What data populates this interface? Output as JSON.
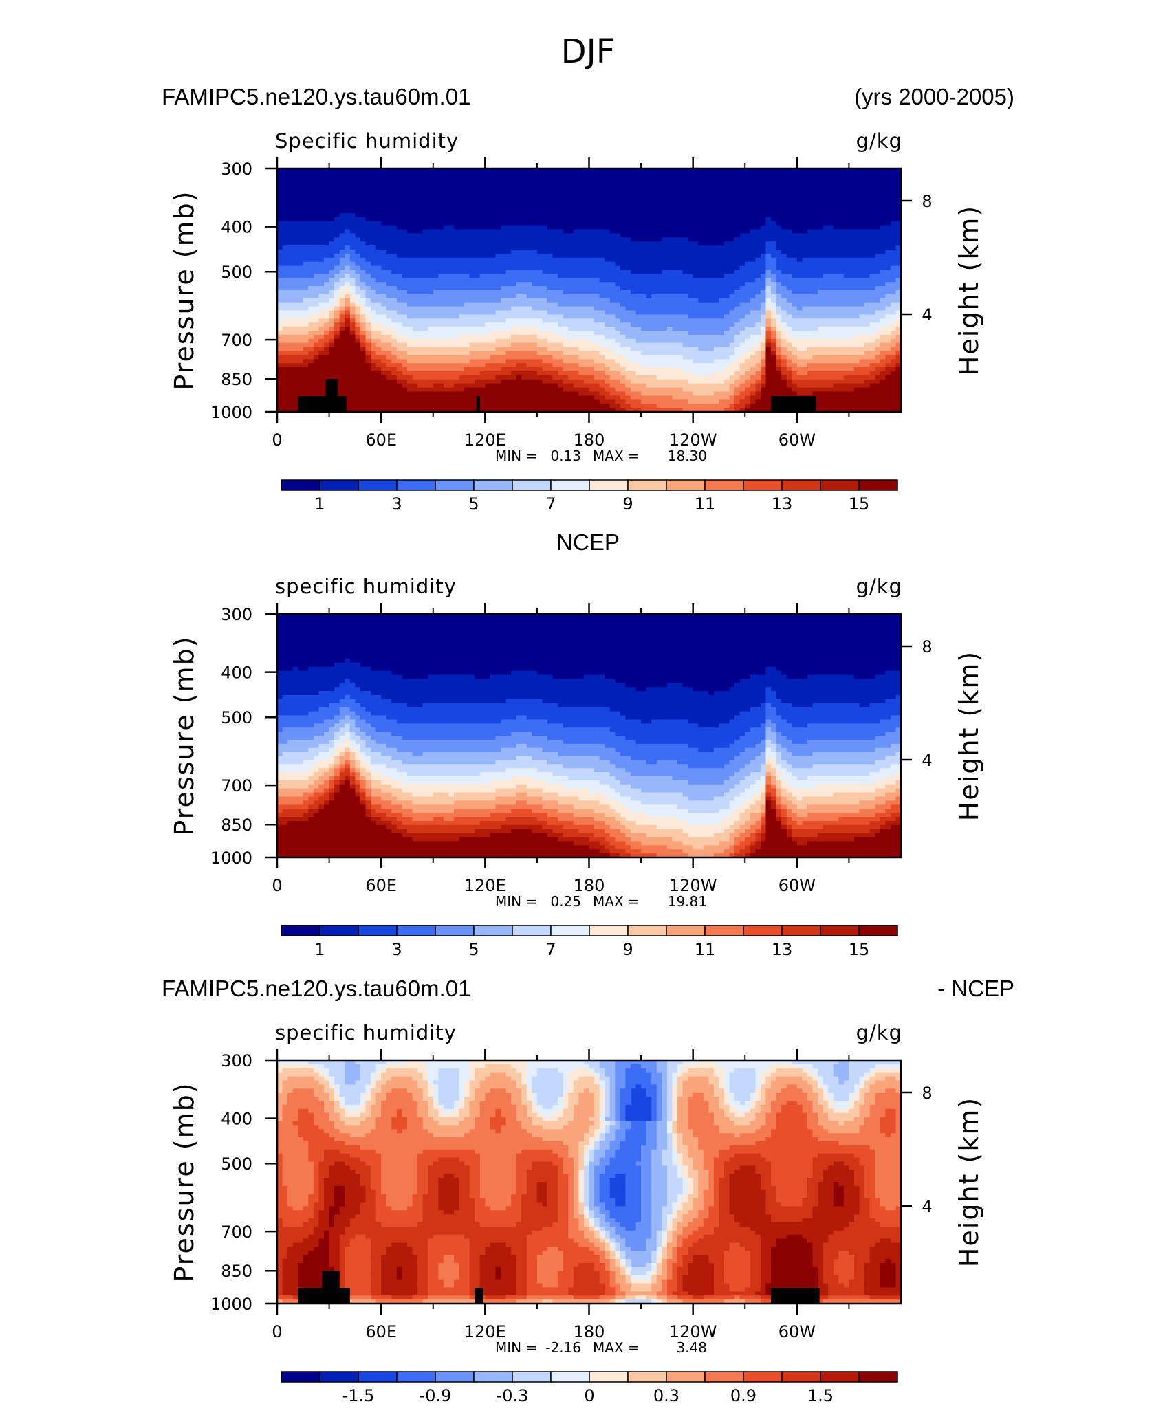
{
  "figure": {
    "title": "DJF"
  },
  "chart_data": [
    {
      "type": "heatmap",
      "id": "model",
      "title_left": "FAMIPC5.ne120.ys.tau60m.01",
      "title_right": "(yrs 2000-2005)",
      "variable": "Specific humidity",
      "units": "g/kg",
      "ylabel": "Pressure (mb)",
      "ylabel_right": "Height (km)",
      "x_ticks": [
        "0",
        "60E",
        "120E",
        "180",
        "120W",
        "60W"
      ],
      "y_ticks": [
        "300",
        "400",
        "500",
        "700",
        "850",
        "1000"
      ],
      "y_ticks_right": [
        "8",
        "4"
      ],
      "xlim": [
        0,
        360
      ],
      "ylim": [
        1000,
        300
      ],
      "min_label": "MIN =",
      "min_value": "0.13",
      "max_label": "MAX =",
      "max_value": "18.30",
      "colorbar_ticks": [
        "1",
        "3",
        "5",
        "7",
        "9",
        "11",
        "13",
        "15"
      ],
      "colorbar_levels": [
        0,
        1,
        2,
        3,
        4,
        5,
        6,
        7,
        8,
        9,
        10,
        11,
        12,
        13,
        14,
        15,
        16
      ],
      "profile_lon": [
        0,
        15,
        30,
        40,
        55,
        80,
        100,
        120,
        140,
        160,
        180,
        200,
        220,
        240,
        260,
        280,
        284,
        290,
        300,
        320,
        340,
        360
      ],
      "profile_scale": [
        0.86,
        0.86,
        0.78,
        0.66,
        0.87,
        0.95,
        0.97,
        0.92,
        0.9,
        0.92,
        0.98,
        1.06,
        1.12,
        1.16,
        1.12,
        0.98,
        0.74,
        0.88,
        0.96,
        0.97,
        0.93,
        0.86
      ],
      "mask_color": "#000000"
    },
    {
      "type": "heatmap",
      "id": "obs",
      "title_center": "NCEP",
      "variable": "specific humidity",
      "units": "g/kg",
      "ylabel": "Pressure (mb)",
      "ylabel_right": "Height (km)",
      "x_ticks": [
        "0",
        "60E",
        "120E",
        "180",
        "120W",
        "60W"
      ],
      "y_ticks": [
        "300",
        "400",
        "500",
        "700",
        "850",
        "1000"
      ],
      "y_ticks_right": [
        "8",
        "4"
      ],
      "xlim": [
        0,
        360
      ],
      "ylim": [
        1000,
        300
      ],
      "min_label": "MIN =",
      "min_value": "0.25",
      "max_label": "MAX =",
      "max_value": "19.81",
      "colorbar_ticks": [
        "1",
        "3",
        "5",
        "7",
        "9",
        "11",
        "13",
        "15"
      ],
      "colorbar_levels": [
        0,
        1,
        2,
        3,
        4,
        5,
        6,
        7,
        8,
        9,
        10,
        11,
        12,
        13,
        14,
        15,
        16
      ],
      "profile_lon": [
        0,
        15,
        30,
        40,
        55,
        80,
        100,
        120,
        140,
        160,
        180,
        200,
        220,
        240,
        260,
        280,
        284,
        290,
        300,
        320,
        340,
        360
      ],
      "profile_scale": [
        0.9,
        0.9,
        0.8,
        0.7,
        0.9,
        0.96,
        0.98,
        0.94,
        0.93,
        0.95,
        1.0,
        1.08,
        1.14,
        1.2,
        1.14,
        1.0,
        0.78,
        0.9,
        0.98,
        0.98,
        0.95,
        0.9
      ]
    },
    {
      "type": "heatmap",
      "id": "diff",
      "title_left": "FAMIPC5.ne120.ys.tau60m.01",
      "title_right": "- NCEP",
      "variable": "specific humidity",
      "units": "g/kg",
      "ylabel": "Pressure (mb)",
      "ylabel_right": "Height (km)",
      "x_ticks": [
        "0",
        "60E",
        "120E",
        "180",
        "120W",
        "60W"
      ],
      "y_ticks": [
        "300",
        "400",
        "500",
        "700",
        "850",
        "1000"
      ],
      "y_ticks_right": [
        "8",
        "4"
      ],
      "xlim": [
        0,
        360
      ],
      "ylim": [
        1000,
        300
      ],
      "min_label": "MIN =",
      "min_value": "-2.16",
      "max_label": "MAX =",
      "max_value": "3.48",
      "colorbar_ticks": [
        "-1.5",
        "-0.9",
        "-0.3",
        "0",
        "0.3",
        "0.9",
        "1.5"
      ],
      "colorbar_levels": [
        -2.1,
        -1.8,
        -1.5,
        -1.2,
        -0.9,
        -0.6,
        -0.3,
        -0.1,
        0,
        0.1,
        0.3,
        0.6,
        0.9,
        1.2,
        1.5,
        1.8,
        2.1
      ],
      "mask_color": "#000000"
    }
  ],
  "colormap": [
    "#00008c",
    "#0020b8",
    "#1846e0",
    "#3d6cf5",
    "#6a93fa",
    "#98b7fb",
    "#c4d8fd",
    "#e4effd",
    "#fde9d8",
    "#fcc9a7",
    "#f9a47b",
    "#f47950",
    "#e8502b",
    "#d23416",
    "#b31b08",
    "#8b0000"
  ]
}
